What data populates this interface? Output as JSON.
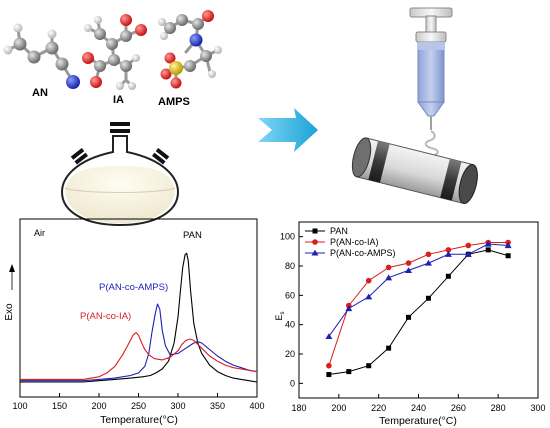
{
  "molecules": {
    "an_label": "AN",
    "ia_label": "IA",
    "amps_label": "AMPS"
  },
  "colors": {
    "black": "#000000",
    "red": "#d81e1e",
    "blue": "#1f1fb4",
    "arrow": "#29b6e3",
    "oxygen": "#e03030",
    "nitrogen": "#2a3ad0",
    "sulfur": "#d8c21a",
    "carbon": "#8a8a8a",
    "hydrogen": "#d8d8d8"
  },
  "chart_data": [
    {
      "type": "line",
      "title": "",
      "annotation": "Air",
      "xlabel": "Temperature(°C)",
      "ylabel": "Exo",
      "xlim": [
        100,
        400
      ],
      "xticks": [
        "100",
        "150",
        "200",
        "250",
        "300",
        "350",
        "400"
      ],
      "series": [
        {
          "name": "PAN",
          "color": "#000000",
          "x": [
            100,
            180,
            200,
            220,
            240,
            255,
            265,
            272,
            280,
            288,
            295,
            300,
            303,
            306,
            309,
            311,
            313,
            316,
            320,
            325,
            330,
            340,
            350,
            360,
            370,
            380,
            390,
            400
          ],
          "y": [
            0.0,
            0.0,
            0.01,
            0.02,
            0.03,
            0.04,
            0.05,
            0.07,
            0.1,
            0.16,
            0.3,
            0.5,
            0.7,
            0.88,
            0.98,
            0.99,
            0.93,
            0.7,
            0.45,
            0.3,
            0.22,
            0.13,
            0.08,
            0.05,
            0.03,
            0.02,
            0.01,
            0.0
          ]
        },
        {
          "name": "P(AN-co-AMPS)",
          "color": "#1f1fb4",
          "x": [
            100,
            180,
            200,
            220,
            240,
            250,
            258,
            263,
            267,
            271,
            274,
            277,
            280,
            284,
            290,
            300,
            310,
            320,
            325,
            330,
            340,
            350,
            360,
            370,
            380,
            390,
            400
          ],
          "y": [
            0.01,
            0.01,
            0.02,
            0.03,
            0.05,
            0.07,
            0.12,
            0.22,
            0.38,
            0.52,
            0.6,
            0.56,
            0.4,
            0.28,
            0.21,
            0.22,
            0.26,
            0.3,
            0.31,
            0.3,
            0.25,
            0.2,
            0.16,
            0.13,
            0.11,
            0.09,
            0.08
          ]
        },
        {
          "name": "P(AN-co-IA)",
          "color": "#d81e1e",
          "x": [
            100,
            180,
            200,
            210,
            220,
            230,
            238,
            243,
            247,
            250,
            254,
            258,
            263,
            270,
            280,
            290,
            300,
            305,
            310,
            315,
            320,
            325,
            330,
            340,
            350,
            360,
            370,
            380,
            390,
            400
          ],
          "y": [
            0.02,
            0.02,
            0.04,
            0.07,
            0.12,
            0.21,
            0.3,
            0.36,
            0.38,
            0.36,
            0.3,
            0.25,
            0.21,
            0.18,
            0.17,
            0.19,
            0.24,
            0.29,
            0.32,
            0.33,
            0.32,
            0.29,
            0.26,
            0.2,
            0.16,
            0.13,
            0.11,
            0.1,
            0.09,
            0.08
          ]
        }
      ]
    },
    {
      "type": "line",
      "title": "",
      "xlabel": "Temperature(°C)",
      "ylabel": "E",
      "ylabel_subscript": "s",
      "xlim": [
        180,
        300
      ],
      "ylim": [
        -10,
        110
      ],
      "xticks": [
        "180",
        "200",
        "220",
        "240",
        "260",
        "280",
        "300"
      ],
      "yticks": [
        "0",
        "20",
        "40",
        "60",
        "80",
        "100"
      ],
      "legend_position": "top-left",
      "series": [
        {
          "name": "PAN",
          "color": "#000000",
          "marker": "square",
          "x": [
            195,
            205,
            215,
            225,
            235,
            245,
            255,
            265,
            275,
            285
          ],
          "y": [
            6,
            8,
            12,
            24,
            45,
            58,
            73,
            88,
            91,
            87
          ]
        },
        {
          "name": "P(AN-co-IA)",
          "color": "#d81e1e",
          "marker": "circle",
          "x": [
            195,
            205,
            215,
            225,
            235,
            245,
            255,
            265,
            275,
            285
          ],
          "y": [
            12,
            53,
            70,
            79,
            82,
            88,
            91,
            94,
            96,
            96
          ]
        },
        {
          "name": "P(AN-co-AMPS)",
          "color": "#1f1fb4",
          "marker": "triangle",
          "x": [
            195,
            205,
            215,
            225,
            235,
            245,
            255,
            265,
            275,
            285
          ],
          "y": [
            32,
            51,
            59,
            72,
            77,
            82,
            88,
            88,
            95,
            94
          ]
        }
      ]
    }
  ]
}
